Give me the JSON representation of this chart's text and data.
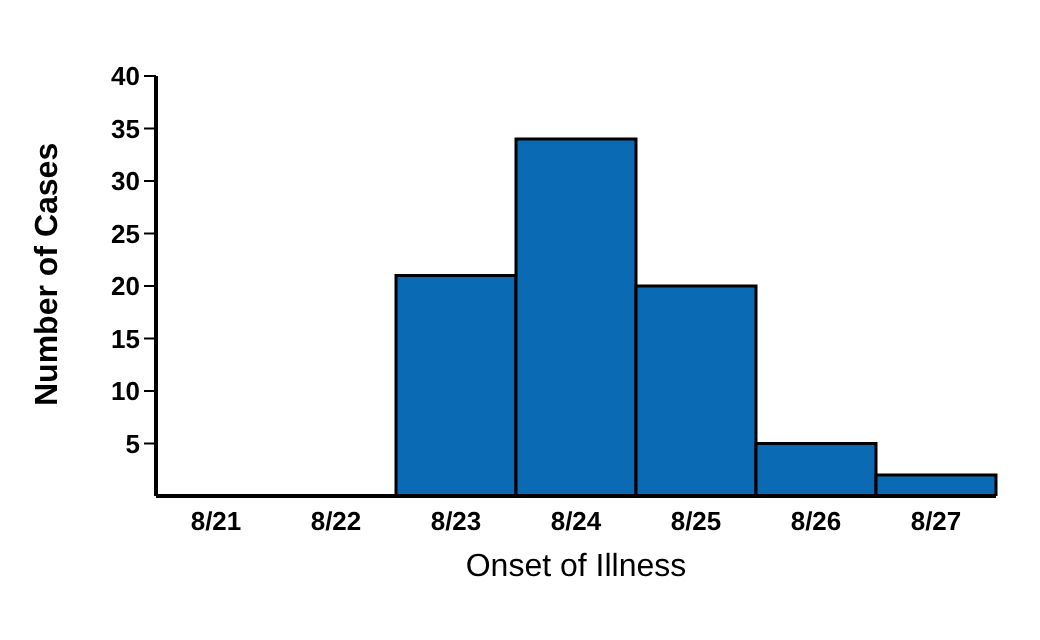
{
  "chart_data": {
    "type": "bar",
    "xlabel": "Onset of Illness",
    "ylabel": "Number of Cases",
    "categories": [
      "8/21",
      "8/22",
      "8/23",
      "8/24",
      "8/25",
      "8/26",
      "8/27"
    ],
    "values": [
      0,
      0,
      21,
      34,
      20,
      5,
      2
    ],
    "color": "#0a6ab4",
    "ylim": [
      0,
      40
    ],
    "yticks": [
      5,
      10,
      15,
      20,
      25,
      30,
      35,
      40
    ],
    "grid": false,
    "legend": false
  }
}
